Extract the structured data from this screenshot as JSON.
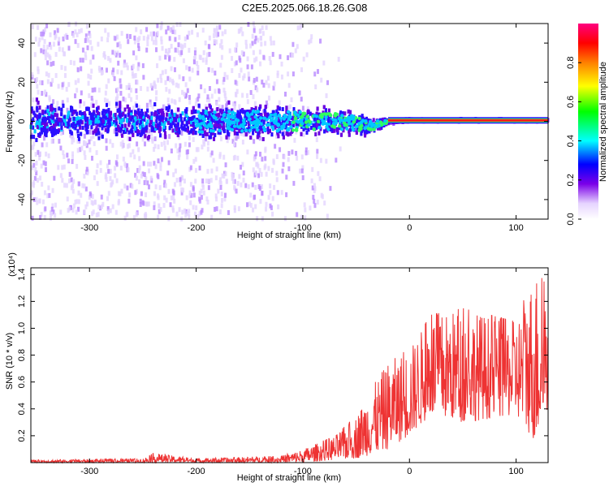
{
  "title": "C2E5.2025.066.18.26.G08",
  "chart_data": [
    {
      "type": "heatmap",
      "xlabel": "Height of straight line (km)",
      "ylabel": "Frequency (Hz)",
      "xlim": [
        -355,
        130
      ],
      "ylim": [
        -50,
        50
      ],
      "x_ticks": [
        -300,
        -200,
        -100,
        0,
        100
      ],
      "y_ticks": [
        -40,
        -20,
        0,
        20,
        40
      ],
      "colorbar": {
        "label": "Normalized spectral amplitude",
        "range": [
          0,
          1
        ],
        "ticks": [
          0.0,
          0.2,
          0.4,
          0.6,
          0.8
        ]
      },
      "description_points": [
        {
          "x": -355,
          "center_hz": 0,
          "spread_hz": 8
        },
        {
          "x": -200,
          "center_hz": 0,
          "spread_hz": 7
        },
        {
          "x": -100,
          "center_hz": 0,
          "spread_hz": 6
        },
        {
          "x": -60,
          "center_hz": 0,
          "spread_hz": 5
        },
        {
          "x": -40,
          "center_hz": -3,
          "spread_hz": 4
        },
        {
          "x": -20,
          "center_hz": 0,
          "spread_hz": 1
        },
        {
          "x": 0,
          "center_hz": 0.5,
          "spread_hz": 0.5
        },
        {
          "x": 130,
          "center_hz": 0.5,
          "spread_hz": 0.5
        }
      ]
    },
    {
      "type": "line",
      "xlabel": "Height of straight line (km)",
      "ylabel": "SNR (10 * v/v)",
      "y_multiplier": "(x10⁴)",
      "xlim": [
        -355,
        130
      ],
      "ylim": [
        0,
        1.45
      ],
      "x_ticks": [
        -300,
        -200,
        -100,
        0,
        100
      ],
      "y_ticks": [
        0.2,
        0.4,
        0.6,
        0.8,
        1.0,
        1.2,
        1.4
      ],
      "series": [
        {
          "color": "#ee3333",
          "envelope": [
            {
              "x": -355,
              "low": 0.0,
              "high": 0.02
            },
            {
              "x": -250,
              "low": 0.0,
              "high": 0.03
            },
            {
              "x": -240,
              "low": 0.0,
              "high": 0.07
            },
            {
              "x": -200,
              "low": 0.0,
              "high": 0.03
            },
            {
              "x": -120,
              "low": 0.0,
              "high": 0.05
            },
            {
              "x": -100,
              "low": 0.0,
              "high": 0.1
            },
            {
              "x": -70,
              "low": 0.02,
              "high": 0.2
            },
            {
              "x": -50,
              "low": 0.03,
              "high": 0.35
            },
            {
              "x": -40,
              "low": 0.05,
              "high": 0.5
            },
            {
              "x": -20,
              "low": 0.1,
              "high": 0.75
            },
            {
              "x": 0,
              "low": 0.2,
              "high": 0.85
            },
            {
              "x": 20,
              "low": 0.35,
              "high": 1.1
            },
            {
              "x": 50,
              "low": 0.3,
              "high": 1.15
            },
            {
              "x": 100,
              "low": 0.35,
              "high": 1.05
            },
            {
              "x": 118,
              "low": 0.15,
              "high": 1.45
            },
            {
              "x": 130,
              "low": 0.4,
              "high": 1.3
            }
          ]
        }
      ]
    }
  ]
}
